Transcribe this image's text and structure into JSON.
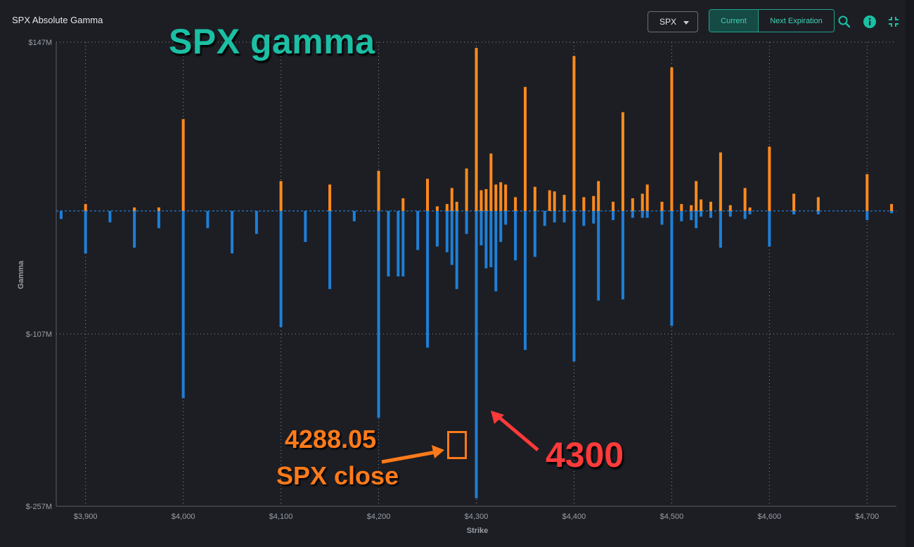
{
  "header": {
    "title": "SPX Absolute Gamma",
    "symbol_select": "SPX",
    "toggle_current": "Current",
    "toggle_next": "Next Expiration",
    "icons": [
      "search-icon",
      "info-icon",
      "collapse-icon"
    ],
    "accent": "#21a38d"
  },
  "annotations": {
    "overlay_title": "SPX gamma",
    "close_value": "4288.05",
    "close_label": "SPX close",
    "strike_label": "4300"
  },
  "chart_data": {
    "type": "bar",
    "xlabel": "Strike",
    "ylabel": "Gamma",
    "xlim": [
      3870,
      4730
    ],
    "ylim": [
      -257,
      147
    ],
    "y_ticks": [
      147,
      -107,
      -257
    ],
    "y_tick_labels": [
      "$147M",
      "$-107M",
      "$-257M"
    ],
    "x_ticks": [
      3900,
      4000,
      4100,
      4200,
      4300,
      4400,
      4500,
      4600,
      4700
    ],
    "x_tick_labels": [
      "$3,900",
      "$4,000",
      "$4,100",
      "$4,200",
      "$4,300",
      "$4,400",
      "$4,500",
      "$4,600",
      "$4,700"
    ],
    "grid": true,
    "colors": {
      "call": "#ff8a1e",
      "put": "#1f7fd6"
    },
    "series": [
      {
        "kind": "call",
        "x": [
          3900,
          3950,
          3975,
          4000,
          4100,
          4150,
          4200,
          4225,
          4250,
          4260,
          4270,
          4275,
          4280,
          4290,
          4300,
          4305,
          4310,
          4315,
          4320,
          4325,
          4330,
          4340,
          4350,
          4360,
          4375,
          4380,
          4390,
          4400,
          4410,
          4420,
          4425,
          4440,
          4450,
          4460,
          4470,
          4475,
          4490,
          4500,
          4510,
          4520,
          4525,
          4530,
          4540,
          4550,
          4560,
          4575,
          4580,
          4600,
          4625,
          4650,
          4700,
          4725
        ],
        "values": [
          6,
          3,
          3,
          80,
          26,
          23,
          35,
          11,
          28,
          4,
          6,
          20,
          8,
          37,
          142,
          18,
          19,
          50,
          23,
          25,
          23,
          12,
          108,
          21,
          18,
          17,
          14,
          135,
          12,
          13,
          26,
          8,
          86,
          11,
          15,
          23,
          8,
          125,
          6,
          5,
          26,
          10,
          8,
          51,
          5,
          20,
          3,
          56,
          15,
          12,
          32,
          6
        ]
      },
      {
        "kind": "put",
        "x": [
          3875,
          3900,
          3925,
          3950,
          3975,
          4000,
          4025,
          4050,
          4075,
          4100,
          4125,
          4150,
          4175,
          4200,
          4210,
          4220,
          4225,
          4240,
          4250,
          4260,
          4270,
          4275,
          4280,
          4290,
          4300,
          4305,
          4310,
          4315,
          4320,
          4325,
          4330,
          4340,
          4350,
          4360,
          4370,
          4380,
          4390,
          4400,
          4410,
          4420,
          4425,
          4440,
          4450,
          4460,
          4470,
          4475,
          4490,
          4500,
          4510,
          4520,
          4525,
          4530,
          4540,
          4550,
          4560,
          4575,
          4580,
          4600,
          4625,
          4650,
          4700,
          4725
        ],
        "values": [
          -7,
          -37,
          -10,
          -32,
          -15,
          -163,
          -15,
          -37,
          -20,
          -101,
          -27,
          -68,
          -9,
          -180,
          -57,
          -57,
          -57,
          -34,
          -119,
          -31,
          -36,
          -47,
          -68,
          -20,
          -250,
          -30,
          -50,
          -49,
          -70,
          -27,
          -12,
          -43,
          -121,
          -40,
          -13,
          -10,
          -10,
          -131,
          -13,
          -11,
          -78,
          -8,
          -77,
          -6,
          -6,
          -6,
          -12,
          -100,
          -9,
          -8,
          -15,
          -5,
          -6,
          -32,
          -5,
          -7,
          -3,
          -31,
          -3,
          -3,
          -8,
          -2
        ]
      }
    ]
  }
}
